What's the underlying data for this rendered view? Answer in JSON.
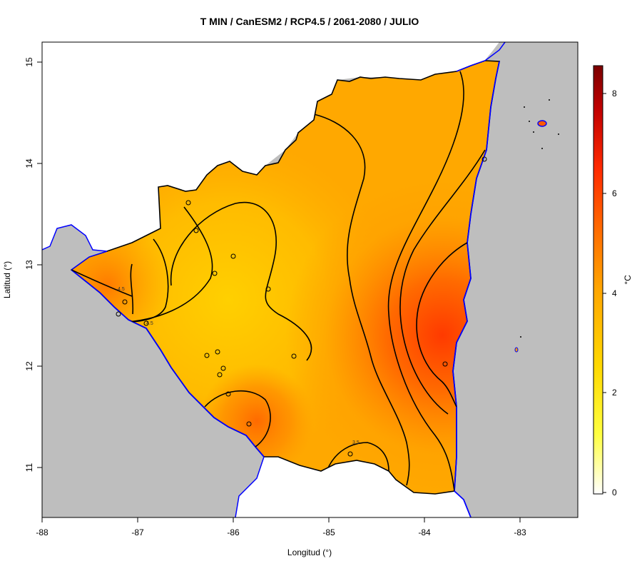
{
  "title": "T MIN / CanESM2 / RCP4.5 / 2061-2080 / JULIO",
  "x_axis": {
    "label": "Longitud (°)",
    "ticks": [
      "-88",
      "-87",
      "-86",
      "-85",
      "-84",
      "-83"
    ]
  },
  "y_axis": {
    "label": "Latitud (°)",
    "ticks": [
      "11",
      "12",
      "13",
      "14",
      "15"
    ]
  },
  "colorbar": {
    "unit": "°C",
    "ticks": [
      "0",
      "2",
      "4",
      "6",
      "8"
    ],
    "range": [
      0,
      8.6
    ],
    "gradient": [
      "#ffffff",
      "#ffff00",
      "#ffd000",
      "#ffa000",
      "#ff6a00",
      "#ff2a00",
      "#c80000",
      "#7a0000"
    ]
  },
  "contour_labels": [
    "4.5",
    "4.5",
    "3.5"
  ],
  "colors": {
    "sea": "#bebebe",
    "coast": "#0000ff",
    "border": "#000000"
  }
}
